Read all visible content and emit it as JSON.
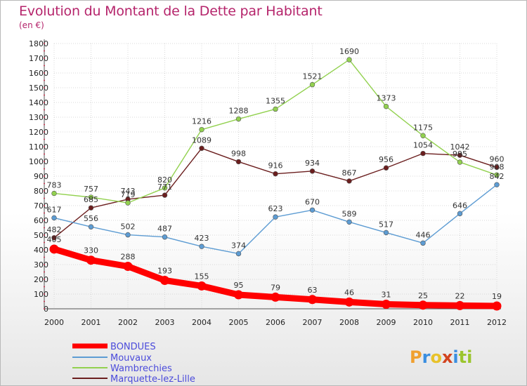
{
  "title": "Evolution du Montant de la Dette par Habitant",
  "subtitle": "(en €)",
  "logo": {
    "text": "Proxiti",
    "colors": [
      "#f0a030",
      "#3a8ee0",
      "#e8c22a",
      "#d2431f",
      "#3a8ee0",
      "#9bc52e",
      "#9bc52e"
    ]
  },
  "chart_data": {
    "type": "line",
    "x": [
      "2000",
      "2001",
      "2002",
      "2003",
      "2004",
      "2005",
      "2006",
      "2007",
      "2008",
      "2009",
      "2010",
      "2011",
      "2012"
    ],
    "ylim": [
      0,
      1800
    ],
    "yticks": [
      0,
      100,
      200,
      300,
      400,
      500,
      600,
      700,
      800,
      900,
      1000,
      1100,
      1200,
      1300,
      1400,
      1500,
      1600,
      1700,
      1800
    ],
    "grid": true,
    "legend": "bottom-left",
    "series": [
      {
        "name": "BONDUES",
        "color": "#ff0000",
        "values": [
          405,
          330,
          288,
          193,
          155,
          95,
          79,
          63,
          46,
          31,
          25,
          22,
          19
        ]
      },
      {
        "name": "Mouvaux",
        "color": "#5d9cd3",
        "values": [
          617,
          556,
          502,
          487,
          423,
          374,
          623,
          670,
          589,
          517,
          446,
          646,
          842
        ]
      },
      {
        "name": "Wambrechies",
        "color": "#92d14f",
        "values": [
          783,
          757,
          719,
          820,
          1216,
          1288,
          1355,
          1521,
          1690,
          1373,
          1175,
          995,
          908
        ]
      },
      {
        "name": "Marquette-lez-Lille",
        "color": "#6b1e1e",
        "values": [
          482,
          685,
          743,
          771,
          1089,
          998,
          916,
          934,
          867,
          956,
          1054,
          1042,
          960
        ]
      }
    ]
  }
}
